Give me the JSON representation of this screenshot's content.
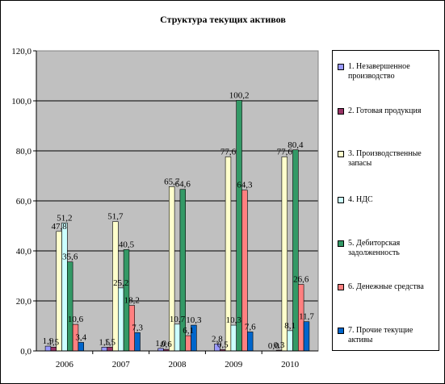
{
  "chart_data": {
    "type": "bar",
    "title": "Структура текущих активов",
    "categories": [
      "2006",
      "2007",
      "2008",
      "2009",
      "2010"
    ],
    "ylim": [
      0,
      120
    ],
    "yticks": [
      "0,0",
      "20,0",
      "40,0",
      "60,0",
      "80,0",
      "100,0",
      "120,0"
    ],
    "grid": true,
    "legend_position": "right",
    "series": [
      {
        "name": "1. Незавершенное производство",
        "color": "#9999ff",
        "values": [
          1.9,
          1.5,
          1.0,
          2.8,
          0.0
        ],
        "labels": [
          "1,9",
          "1,5",
          "1,0",
          "2,8",
          "0,0"
        ]
      },
      {
        "name": "2. Готовая продукция",
        "color": "#993366",
        "values": [
          1.5,
          1.5,
          0.6,
          0.5,
          0.3
        ],
        "labels": [
          "1,5",
          "1,5",
          "0,6",
          "0,5",
          "0,3"
        ]
      },
      {
        "name": "3. Производственные запасы",
        "color": "#ffffcc",
        "values": [
          47.8,
          51.7,
          65.7,
          77.6,
          77.6
        ],
        "labels": [
          "47,8",
          "51,7",
          "65,7",
          "77,6",
          "77,6"
        ]
      },
      {
        "name": "4. НДС",
        "color": "#ccffff",
        "values": [
          51.2,
          25.2,
          10.7,
          10.3,
          8.1
        ],
        "labels": [
          "51,2",
          "25,2",
          "10,7",
          "10,3",
          "8,1"
        ]
      },
      {
        "name": "5. Дебиторская задолженность",
        "color": "#339966",
        "values": [
          35.6,
          40.5,
          64.6,
          100.2,
          80.4
        ],
        "labels": [
          "35,6",
          "40,5",
          "64,6",
          "100,2",
          "80,4"
        ]
      },
      {
        "name": "6. Денежные средства",
        "color": "#ff8080",
        "values": [
          10.6,
          18.2,
          6.1,
          64.3,
          26.6
        ],
        "labels": [
          "10,6",
          "18,2",
          "6,1",
          "64,3",
          "26,6"
        ]
      },
      {
        "name": "7. Прочие текущие активы",
        "color": "#0066cc",
        "values": [
          3.4,
          7.3,
          10.3,
          7.6,
          11.7
        ],
        "labels": [
          "3,4",
          "7,3",
          "10,3",
          "7,6",
          "11,7"
        ]
      }
    ]
  }
}
